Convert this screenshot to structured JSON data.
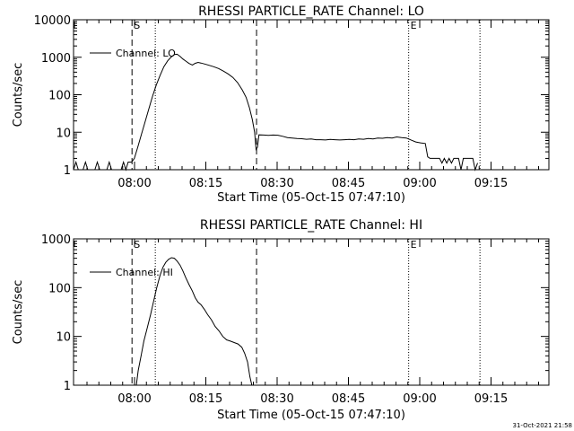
{
  "footer": {
    "timestamp": "31-Oct-2021 21:58"
  },
  "chart_data": [
    {
      "type": "line",
      "title": "RHESSI PARTICLE_RATE Channel: LO",
      "xlabel": "Start Time (05-Oct-15 07:47:10)",
      "ylabel": "Counts/sec",
      "y_scale": "log",
      "ylim": [
        1,
        10000
      ],
      "y_ticks": [
        "1",
        "10",
        "100",
        "1000",
        "10000"
      ],
      "x_ticks": [
        "08:00",
        "08:15",
        "08:30",
        "08:45",
        "09:00",
        "09:15"
      ],
      "x_tick_values_min": [
        12.83,
        27.83,
        42.83,
        57.83,
        72.83,
        87.83
      ],
      "xlim_min": [
        0,
        100
      ],
      "grid": false,
      "legend_position": "top-left",
      "markers": [
        {
          "label": "S",
          "x_min": 12.3,
          "style": "dashed"
        },
        {
          "label": "",
          "x_min": 17.2,
          "style": "dotted"
        },
        {
          "label": "",
          "x_min": 38.5,
          "style": "dashed"
        },
        {
          "label": "E",
          "x_min": 70.5,
          "style": "dotted"
        },
        {
          "label": "",
          "x_min": 85.5,
          "style": "dotted"
        }
      ],
      "series": [
        {
          "name": "Channel: LO",
          "points": [
            [
              0,
              1
            ],
            [
              0.5,
              1.6
            ],
            [
              1.0,
              1
            ],
            [
              2.0,
              1
            ],
            [
              2.5,
              1.6
            ],
            [
              3.0,
              1
            ],
            [
              4.5,
              1
            ],
            [
              5.0,
              1.6
            ],
            [
              5.5,
              1
            ],
            [
              7.0,
              1
            ],
            [
              7.5,
              1.6
            ],
            [
              8.0,
              1
            ],
            [
              10.0,
              1
            ],
            [
              10.5,
              1.6
            ],
            [
              11.0,
              1
            ],
            [
              11.5,
              1.6
            ],
            [
              12.2,
              1.6
            ],
            [
              12.8,
              2
            ],
            [
              13.5,
              4
            ],
            [
              14.3,
              9
            ],
            [
              15.0,
              18
            ],
            [
              15.8,
              40
            ],
            [
              16.6,
              90
            ],
            [
              17.4,
              180
            ],
            [
              18.2,
              330
            ],
            [
              19.0,
              560
            ],
            [
              19.8,
              800
            ],
            [
              20.5,
              1000
            ],
            [
              21.2,
              1180
            ],
            [
              21.8,
              1200
            ],
            [
              22.4,
              1060
            ],
            [
              23.0,
              900
            ],
            [
              23.6,
              790
            ],
            [
              24.3,
              680
            ],
            [
              25.0,
              620
            ],
            [
              25.6,
              690
            ],
            [
              26.2,
              730
            ],
            [
              26.8,
              700
            ],
            [
              27.6,
              660
            ],
            [
              28.5,
              610
            ],
            [
              29.5,
              560
            ],
            [
              30.5,
              500
            ],
            [
              31.5,
              430
            ],
            [
              32.5,
              360
            ],
            [
              33.5,
              290
            ],
            [
              34.5,
              210
            ],
            [
              35.5,
              135
            ],
            [
              36.3,
              85
            ],
            [
              37.0,
              45
            ],
            [
              37.6,
              22
            ],
            [
              38.1,
              10
            ],
            [
              38.4,
              3.5
            ],
            [
              38.7,
              4
            ],
            [
              39.0,
              8.5
            ],
            [
              40.0,
              8.4
            ],
            [
              41.0,
              8.2
            ],
            [
              42.0,
              8.4
            ],
            [
              43.0,
              8.3
            ],
            [
              44.0,
              7.8
            ],
            [
              45.0,
              7.2
            ],
            [
              46.0,
              7.0
            ],
            [
              47.0,
              6.8
            ],
            [
              48.0,
              6.7
            ],
            [
              49.0,
              6.5
            ],
            [
              50.0,
              6.6
            ],
            [
              51.0,
              6.3
            ],
            [
              52.0,
              6.3
            ],
            [
              53.0,
              6.2
            ],
            [
              54.0,
              6.4
            ],
            [
              55.0,
              6.3
            ],
            [
              56.0,
              6.2
            ],
            [
              57.0,
              6.3
            ],
            [
              58.0,
              6.4
            ],
            [
              59.0,
              6.3
            ],
            [
              60.0,
              6.6
            ],
            [
              61.0,
              6.5
            ],
            [
              62.0,
              6.8
            ],
            [
              63.0,
              6.6
            ],
            [
              64.0,
              7.0
            ],
            [
              65.0,
              6.9
            ],
            [
              66.0,
              7.2
            ],
            [
              67.0,
              7.0
            ],
            [
              68.0,
              7.5
            ],
            [
              69.0,
              7.2
            ],
            [
              70.0,
              7.0
            ],
            [
              71.0,
              6.2
            ],
            [
              72.0,
              5.5
            ],
            [
              73.0,
              5.2
            ],
            [
              74.0,
              5.0
            ],
            [
              74.5,
              2.2
            ],
            [
              75.0,
              2
            ],
            [
              77.0,
              2
            ],
            [
              77.5,
              1.5
            ],
            [
              78.0,
              2
            ],
            [
              78.5,
              1.5
            ],
            [
              79.0,
              2
            ],
            [
              79.5,
              1.5
            ],
            [
              80.0,
              2
            ],
            [
              81.0,
              2
            ],
            [
              81.5,
              1
            ],
            [
              82.0,
              2
            ],
            [
              84.0,
              2
            ],
            [
              84.5,
              1
            ],
            [
              85.0,
              1.5
            ]
          ]
        }
      ]
    },
    {
      "type": "line",
      "title": "RHESSI PARTICLE_RATE Channel: HI",
      "xlabel": "Start Time (05-Oct-15 07:47:10)",
      "ylabel": "Counts/sec",
      "y_scale": "log",
      "ylim": [
        1,
        1000
      ],
      "y_ticks": [
        "1",
        "10",
        "100",
        "1000"
      ],
      "x_ticks": [
        "08:00",
        "08:15",
        "08:30",
        "08:45",
        "09:00",
        "09:15"
      ],
      "x_tick_values_min": [
        12.83,
        27.83,
        42.83,
        57.83,
        72.83,
        87.83
      ],
      "xlim_min": [
        0,
        100
      ],
      "grid": false,
      "legend_position": "top-left",
      "markers": [
        {
          "label": "S",
          "x_min": 12.3,
          "style": "dashed"
        },
        {
          "label": "",
          "x_min": 17.2,
          "style": "dotted"
        },
        {
          "label": "",
          "x_min": 38.5,
          "style": "dashed"
        },
        {
          "label": "E",
          "x_min": 70.5,
          "style": "dotted"
        },
        {
          "label": "",
          "x_min": 85.5,
          "style": "dotted"
        }
      ],
      "series": [
        {
          "name": "Channel: HI",
          "points": [
            [
              13.2,
              1
            ],
            [
              13.6,
              2
            ],
            [
              14.2,
              4
            ],
            [
              14.8,
              8
            ],
            [
              15.5,
              15
            ],
            [
              16.2,
              28
            ],
            [
              16.8,
              50
            ],
            [
              17.5,
              100
            ],
            [
              18.2,
              180
            ],
            [
              18.8,
              260
            ],
            [
              19.4,
              330
            ],
            [
              20.0,
              380
            ],
            [
              20.6,
              410
            ],
            [
              21.2,
              400
            ],
            [
              21.8,
              350
            ],
            [
              22.4,
              290
            ],
            [
              23.0,
              220
            ],
            [
              23.6,
              160
            ],
            [
              24.3,
              115
            ],
            [
              25.0,
              85
            ],
            [
              25.6,
              62
            ],
            [
              26.2,
              50
            ],
            [
              26.8,
              45
            ],
            [
              27.5,
              36
            ],
            [
              28.2,
              28
            ],
            [
              29.0,
              22
            ],
            [
              29.8,
              16
            ],
            [
              30.6,
              13
            ],
            [
              31.4,
              10
            ],
            [
              32.2,
              8.5
            ],
            [
              33.0,
              8
            ],
            [
              33.8,
              7.5
            ],
            [
              34.6,
              7
            ],
            [
              35.4,
              6
            ],
            [
              36.0,
              4.5
            ],
            [
              36.6,
              3
            ],
            [
              37.1,
              1.5
            ],
            [
              37.5,
              1
            ]
          ]
        }
      ]
    }
  ]
}
